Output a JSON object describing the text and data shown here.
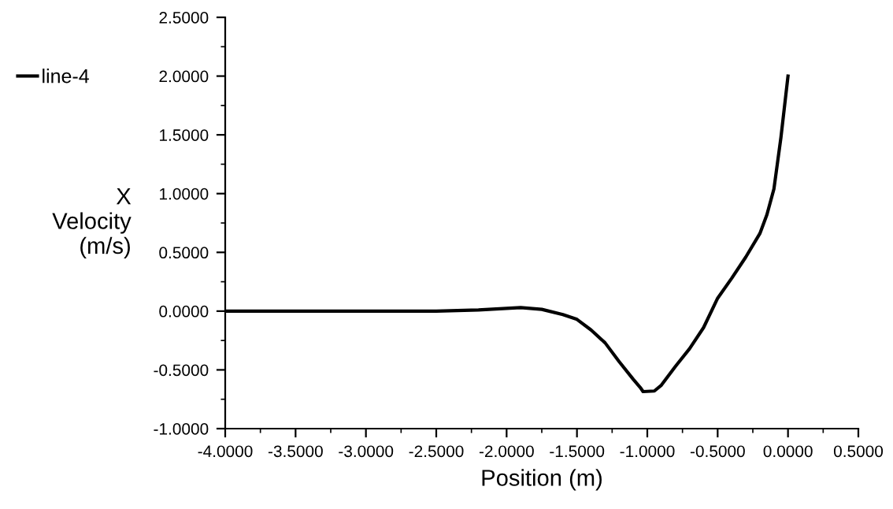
{
  "chart_data": {
    "type": "line",
    "xlabel": "Position (m)",
    "ylabel": "X\nVelocity\n(m/s)",
    "legend": "top left",
    "grid": false,
    "marker": "none",
    "line_style": "solid",
    "xlim": [
      -4.0,
      0.5
    ],
    "ylim": [
      -1.0,
      2.5
    ],
    "xticks": [
      {
        "value": -4.0,
        "label": "-4.0000"
      },
      {
        "value": -3.5,
        "label": "-3.5000"
      },
      {
        "value": -3.0,
        "label": "-3.0000"
      },
      {
        "value": -2.5,
        "label": "-2.5000"
      },
      {
        "value": -2.0,
        "label": "-2.0000"
      },
      {
        "value": -1.5,
        "label": "-1.5000"
      },
      {
        "value": -1.0,
        "label": "-1.0000"
      },
      {
        "value": -0.5,
        "label": "-0.5000"
      },
      {
        "value": 0.0,
        "label": "0.0000"
      },
      {
        "value": 0.5,
        "label": "0.5000"
      }
    ],
    "yticks": [
      {
        "value": -1.0,
        "label": "-1.0000"
      },
      {
        "value": -0.5,
        "label": "-0.5000"
      },
      {
        "value": 0.0,
        "label": "0.0000"
      },
      {
        "value": 0.5,
        "label": "0.5000"
      },
      {
        "value": 1.0,
        "label": "1.0000"
      },
      {
        "value": 1.5,
        "label": "1.5000"
      },
      {
        "value": 2.0,
        "label": "2.0000"
      },
      {
        "value": 2.5,
        "label": "2.5000"
      }
    ],
    "series": [
      {
        "name": "line-4",
        "color": "#000000",
        "x": [
          -4.0,
          -3.0,
          -2.5,
          -2.2,
          -1.9,
          -1.75,
          -1.6,
          -1.5,
          -1.4,
          -1.3,
          -1.2,
          -1.1,
          -1.05,
          -1.03,
          -0.95,
          -0.9,
          -0.8,
          -0.7,
          -0.6,
          -0.5,
          -0.4,
          -0.3,
          -0.2,
          -0.15,
          -0.1,
          -0.05,
          0.0
        ],
        "values": [
          0.0,
          0.0,
          0.0,
          0.01,
          0.03,
          0.015,
          -0.03,
          -0.07,
          -0.16,
          -0.27,
          -0.43,
          -0.58,
          -0.65,
          -0.685,
          -0.68,
          -0.63,
          -0.47,
          -0.32,
          -0.14,
          0.11,
          0.28,
          0.46,
          0.66,
          0.82,
          1.04,
          1.48,
          2.0
        ]
      }
    ]
  }
}
